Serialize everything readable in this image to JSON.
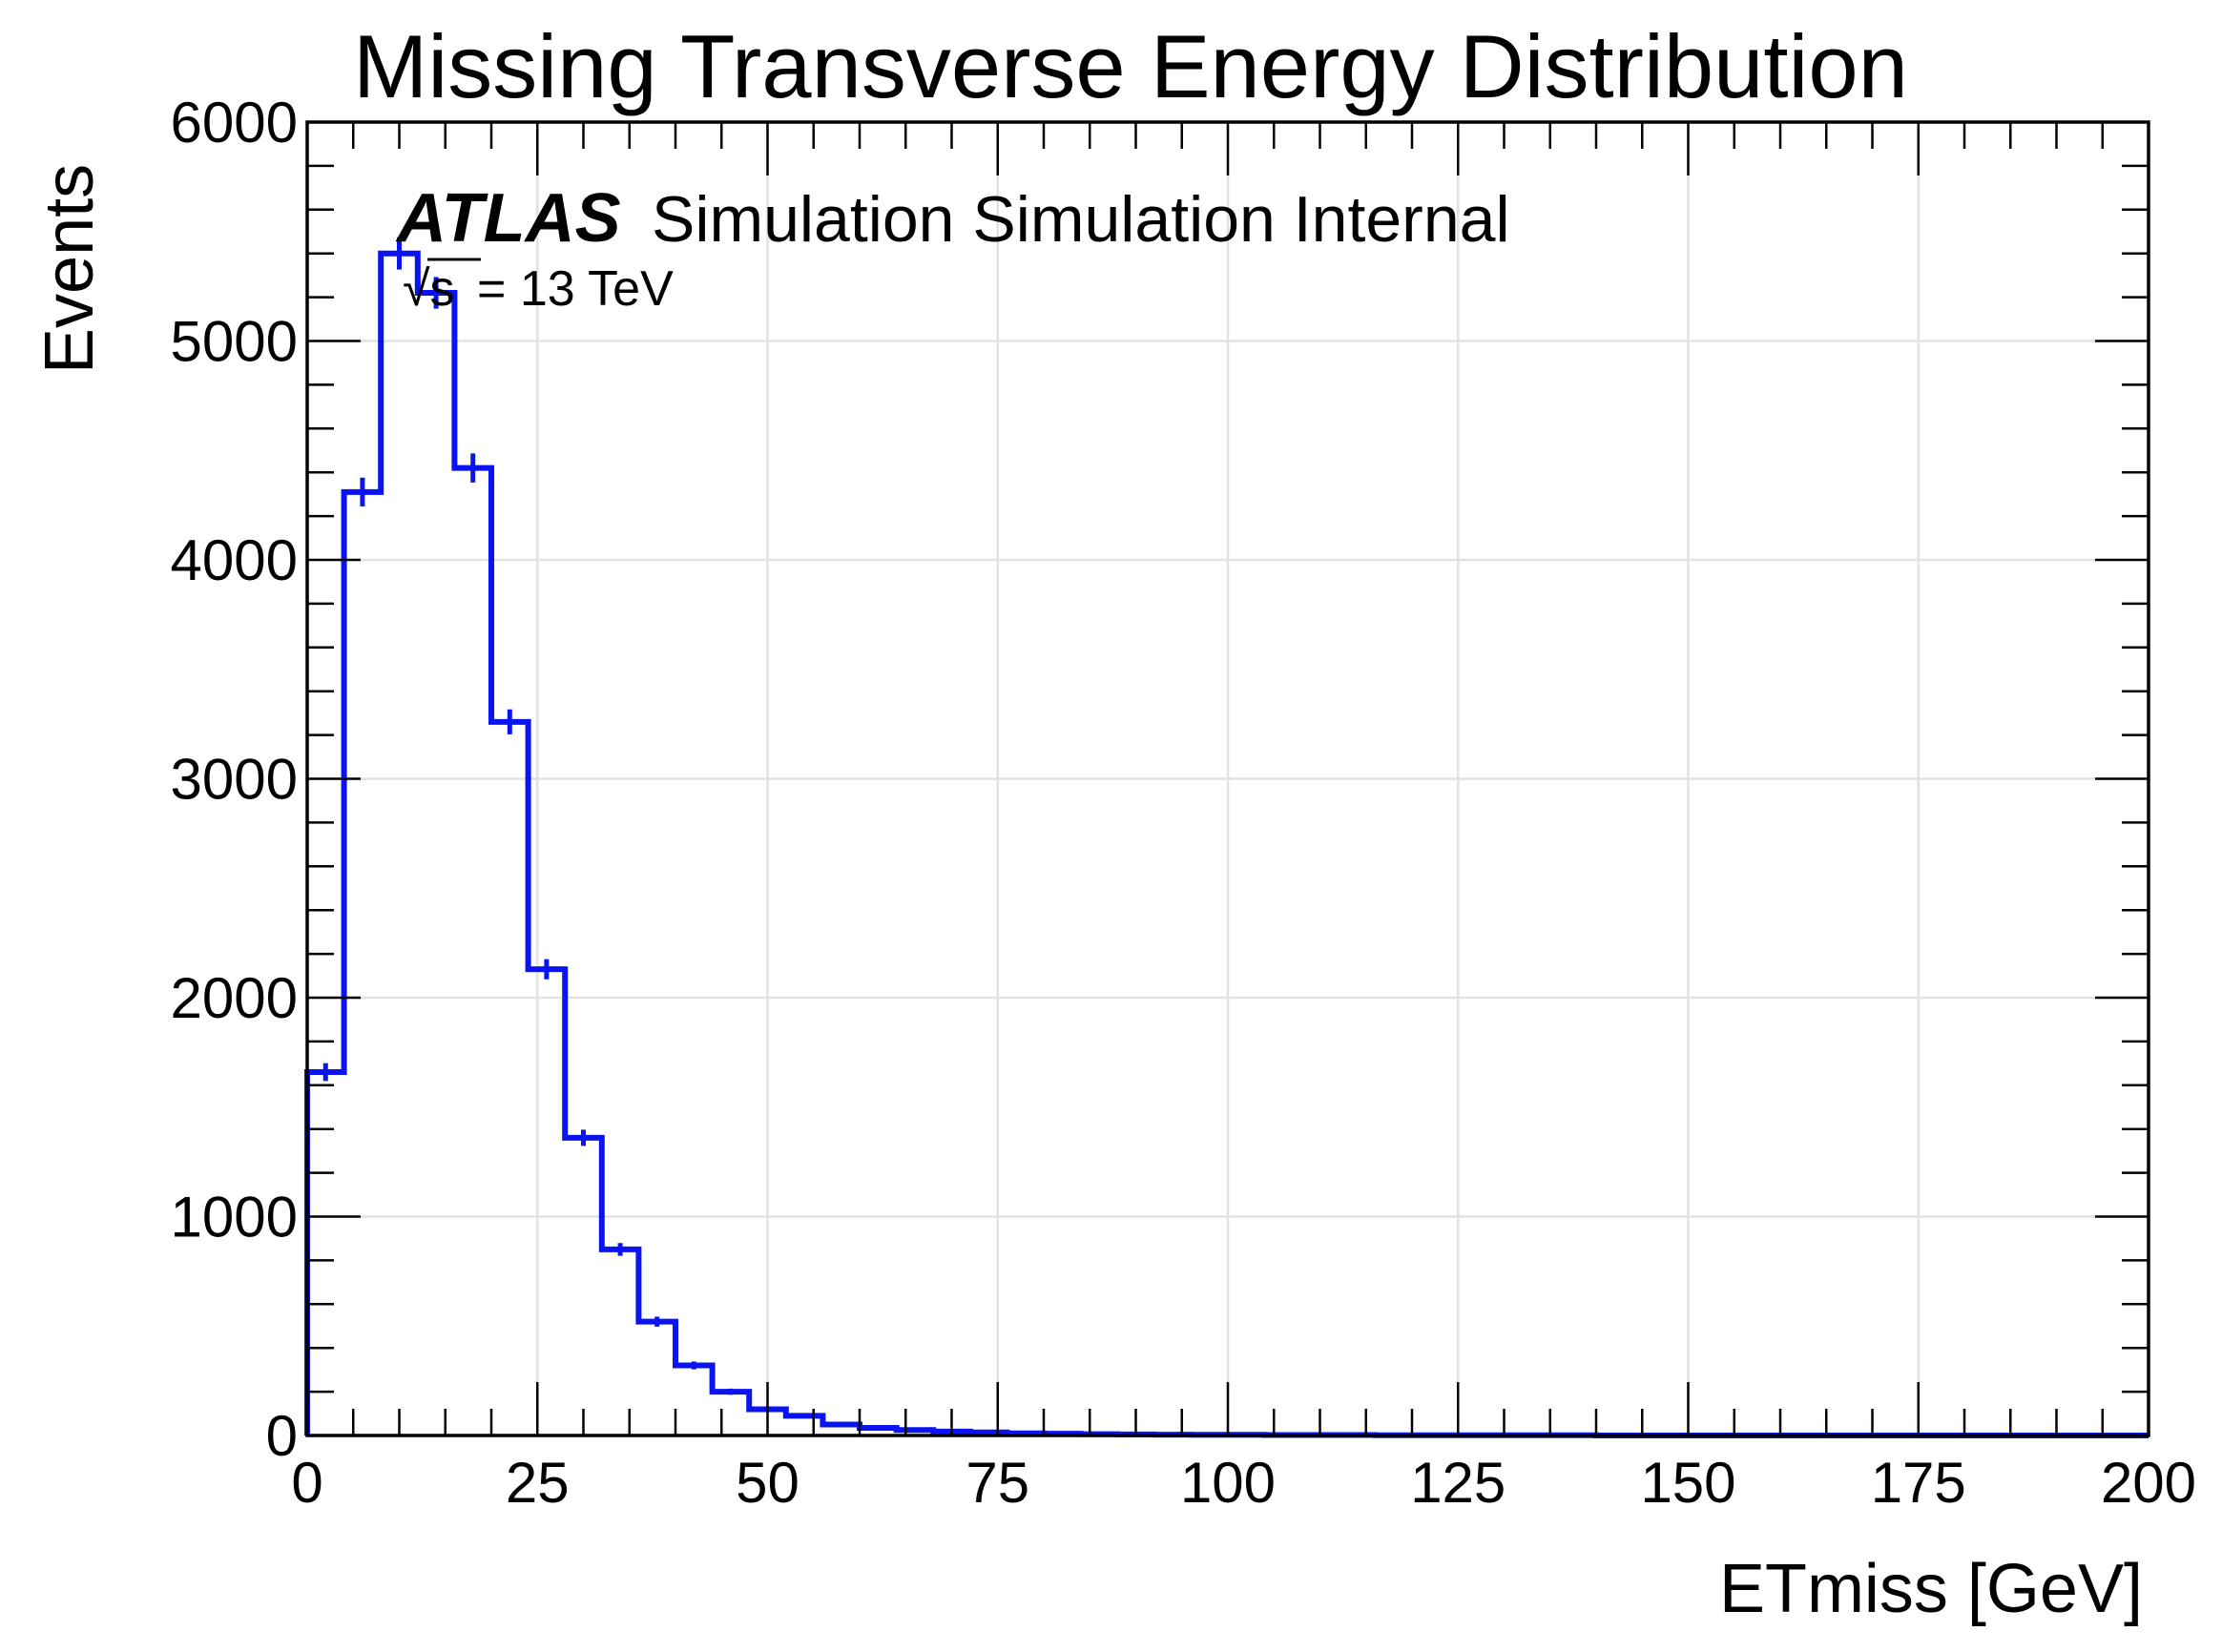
{
  "chart_data": {
    "type": "histogram",
    "title": "Missing Transverse Energy Distribution",
    "xlabel": "ETmiss [GeV]",
    "ylabel": "Events",
    "xlim": [
      0,
      200
    ],
    "ylim": [
      0,
      6000
    ],
    "x_ticks": [
      0,
      25,
      50,
      75,
      100,
      125,
      150,
      175,
      200
    ],
    "y_ticks": [
      0,
      1000,
      2000,
      3000,
      4000,
      5000,
      6000
    ],
    "grid": true,
    "bin_width": 4,
    "series": [
      {
        "color": "#0a14f0",
        "bin_edges": [
          0,
          4,
          8,
          12,
          16,
          20,
          24,
          28,
          32,
          36,
          40,
          44,
          48,
          52,
          56,
          60,
          64,
          68,
          72,
          76,
          80,
          84,
          88,
          92,
          96,
          100,
          104,
          108,
          112,
          116,
          120,
          124,
          128,
          132,
          136,
          140,
          144,
          148,
          152,
          156,
          160,
          164,
          168,
          172,
          176,
          180,
          184,
          188,
          192,
          196,
          200
        ],
        "values": [
          1660,
          4310,
          5400,
          5220,
          4420,
          3260,
          2130,
          1360,
          850,
          520,
          320,
          200,
          120,
          90,
          50,
          35,
          25,
          18,
          14,
          10,
          8,
          6,
          5,
          4,
          3,
          3,
          2,
          2,
          2,
          1,
          1,
          1,
          1,
          1,
          1,
          0,
          0,
          0,
          0,
          0,
          0,
          0,
          0,
          0,
          0,
          0,
          0,
          0,
          0,
          0
        ]
      }
    ],
    "annotations": {
      "experiment": "ATLAS",
      "label": "Simulation Simulation Internal",
      "energy_sqrt": "√s",
      "energy_value": " = 13 TeV"
    }
  }
}
